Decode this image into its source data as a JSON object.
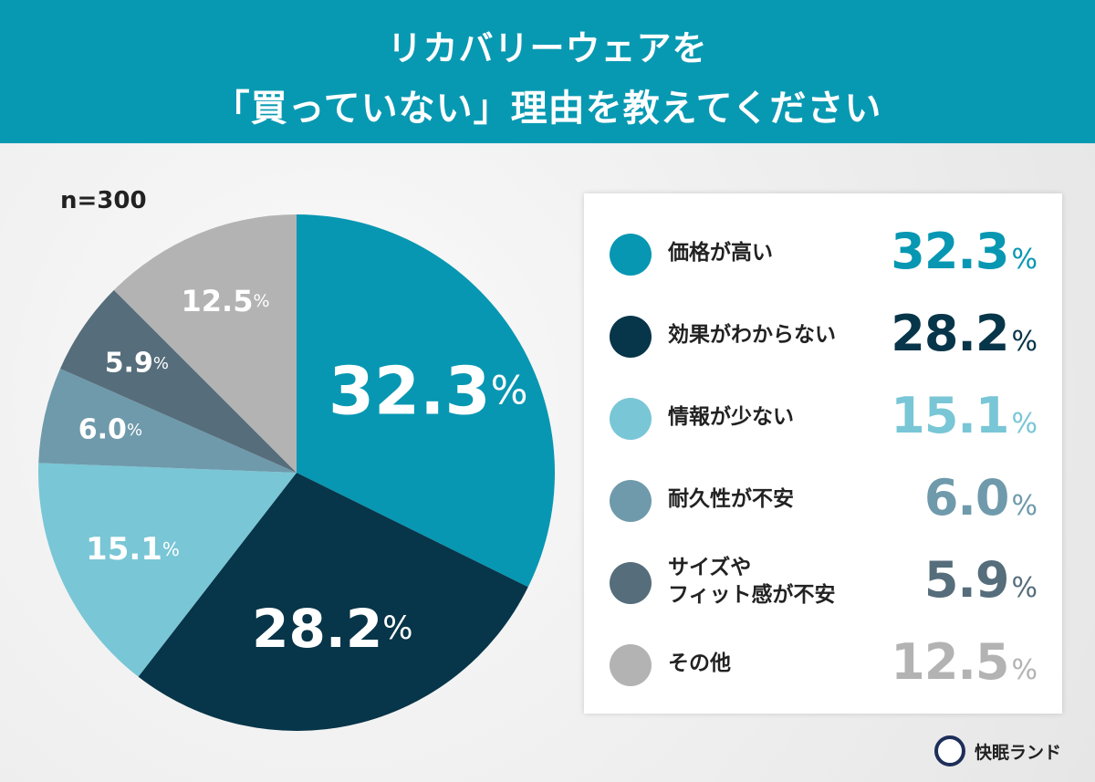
{
  "title": {
    "line1": "リカバリーウェアを",
    "line2": "「買っていない」理由を教えてください"
  },
  "sample": "n=300",
  "chart_data": {
    "type": "pie",
    "title": "リカバリーウェアを「買っていない」理由を教えてください",
    "categories": [
      "価格が高い",
      "効果がわからない",
      "情報が少ない",
      "耐久性が不安",
      "サイズやフィット感が不安",
      "その他"
    ],
    "values": [
      32.3,
      28.2,
      15.1,
      6.0,
      5.9,
      12.5
    ],
    "labels": [
      "32.3",
      "28.2",
      "15.1",
      "6.0",
      "5.9",
      "12.5"
    ],
    "unit": "%",
    "colors": [
      "#0797b2",
      "#073549",
      "#79c6d6",
      "#6f9aab",
      "#566d7b",
      "#b3b3b3"
    ],
    "legend_position": "right",
    "start": "top",
    "direction": "clockwise"
  },
  "legend": [
    {
      "label": "価格が高い",
      "value": "32.3"
    },
    {
      "label": "効果がわからない",
      "value": "28.2"
    },
    {
      "label": "情報が少ない",
      "value": "15.1"
    },
    {
      "label": "耐久性が不安",
      "value": "6.0"
    },
    {
      "label": "サイズや\nフィット感が不安",
      "value": "5.9"
    },
    {
      "label": "その他",
      "value": "12.5"
    }
  ],
  "brand": "快眠ランド"
}
